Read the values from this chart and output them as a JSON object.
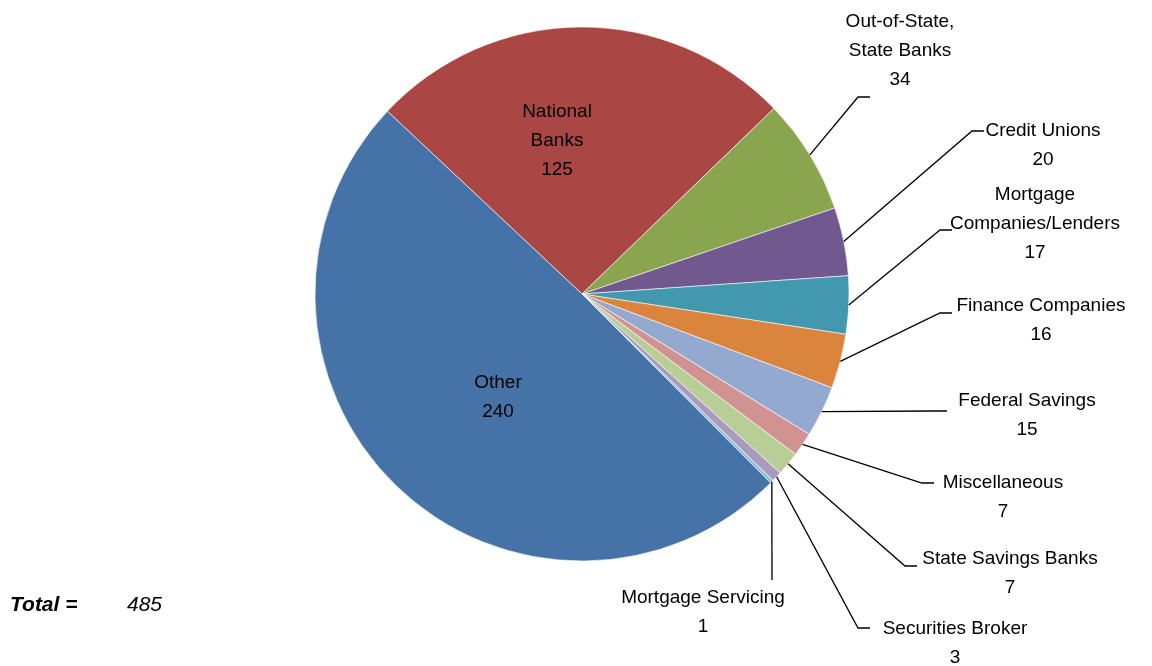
{
  "chart_data": {
    "type": "pie",
    "categories": [
      "National Banks",
      "Out-of-State, State Banks",
      "Credit Unions",
      "Mortgage Companies/Lenders",
      "Finance Companies",
      "Federal Savings",
      "Miscellaneous",
      "State Savings Banks",
      "Securities Broker",
      "Mortgage Servicing",
      "Other"
    ],
    "values": [
      125,
      34,
      20,
      17,
      16,
      15,
      7,
      7,
      3,
      1,
      240
    ],
    "colors": [
      "#aa4643",
      "#89a54e",
      "#71588f",
      "#4198af",
      "#db843d",
      "#93a9cf",
      "#d19392",
      "#b9cd96",
      "#a99bbd",
      "#92c3d4",
      "#4572a7"
    ],
    "data_labels": true,
    "annotations": [
      "Total =",
      "485"
    ]
  }
}
